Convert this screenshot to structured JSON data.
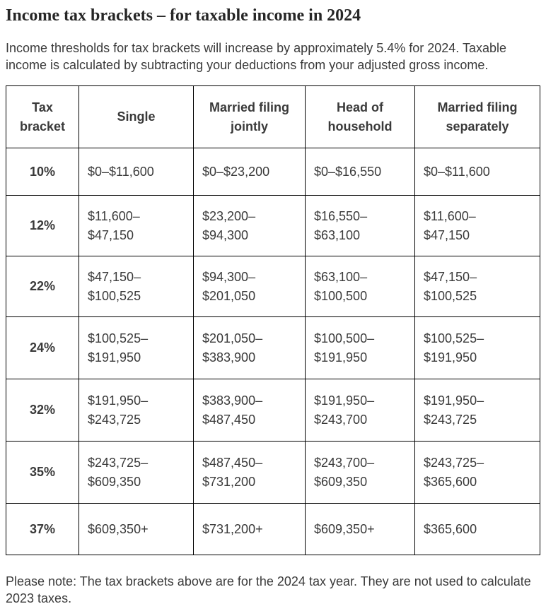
{
  "title": "Income tax brackets – for taxable income in 2024",
  "intro": "Income thresholds for tax brackets will increase by approximately 5.4% for 2024. Taxable income is calculated by subtracting your deductions from your adjusted gross income.",
  "note": "Please note: The tax brackets above are for the 2024 tax year. They are not used to calculate 2023 taxes.",
  "colors": {
    "background": "#ffffff",
    "title_text": "#262626",
    "body_text": "#3a3a3a",
    "table_border": "#000000"
  },
  "table": {
    "columns": [
      "Tax bracket",
      "Single",
      "Married filing jointly",
      "Head of household",
      "Married filing separately"
    ],
    "rows": [
      {
        "bracket": "10%",
        "single": "$0–$11,600",
        "married_jointly": "$0–$23,200",
        "head_of_household": "$0–$16,550",
        "married_separately": "$0–$11,600"
      },
      {
        "bracket": "12%",
        "single": "$11,600–\n$47,150",
        "married_jointly": "$23,200–\n$94,300",
        "head_of_household": "$16,550–\n$63,100",
        "married_separately": "$11,600–\n$47,150"
      },
      {
        "bracket": "22%",
        "single": "$47,150–\n$100,525",
        "married_jointly": "$94,300–\n$201,050",
        "head_of_household": "$63,100–\n$100,500",
        "married_separately": "$47,150–\n$100,525"
      },
      {
        "bracket": "24%",
        "single": "$100,525–\n$191,950",
        "married_jointly": "$201,050–\n$383,900",
        "head_of_household": "$100,500–\n$191,950",
        "married_separately": "$100,525–\n$191,950"
      },
      {
        "bracket": "32%",
        "single": "$191,950–\n$243,725",
        "married_jointly": "$383,900–\n$487,450",
        "head_of_household": "$191,950–\n$243,700",
        "married_separately": "$191,950–\n$243,725"
      },
      {
        "bracket": "35%",
        "single": "$243,725–\n$609,350",
        "married_jointly": "$487,450–\n$731,200",
        "head_of_household": "$243,700–\n$609,350",
        "married_separately": "$243,725–\n$365,600"
      },
      {
        "bracket": "37%",
        "single": "$609,350+",
        "married_jointly": "$731,200+",
        "head_of_household": "$609,350+",
        "married_separately": "$365,600"
      }
    ]
  }
}
